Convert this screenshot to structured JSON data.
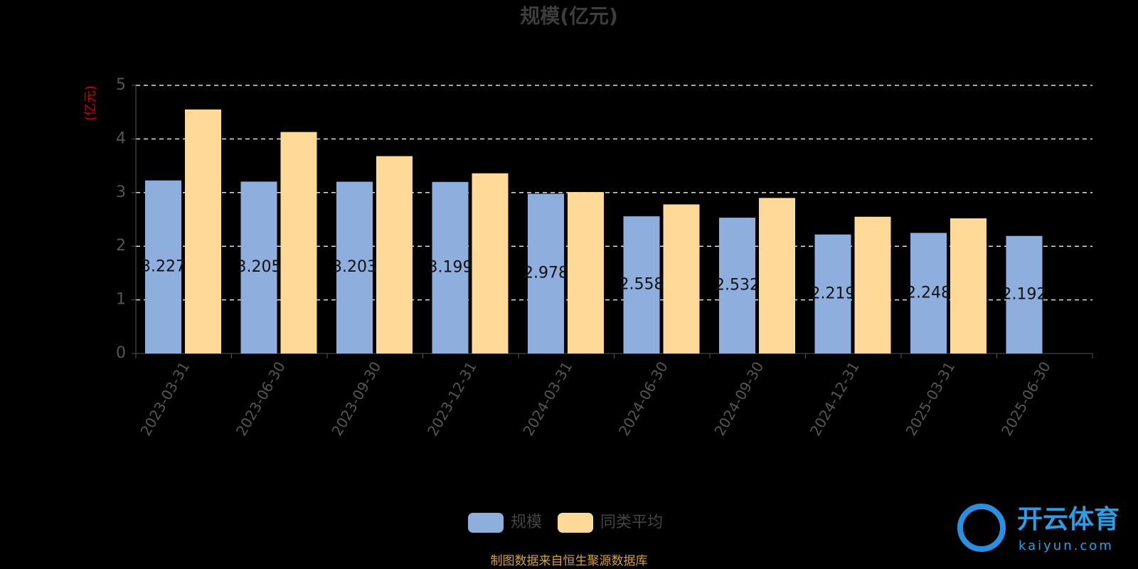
{
  "chart_data": {
    "type": "bar",
    "title": "规模(亿元)",
    "y_label": "(亿元)",
    "categories": [
      "2023-03-31",
      "2023-06-30",
      "2023-09-30",
      "2023-12-31",
      "2024-03-31",
      "2024-06-30",
      "2024-09-30",
      "2024-12-31",
      "2025-03-31",
      "2025-06-30"
    ],
    "series": [
      {
        "name": "规模",
        "color": "#8eaedd",
        "values": [
          3.227,
          3.205,
          3.203,
          3.199,
          2.978,
          2.558,
          2.532,
          2.219,
          2.248,
          2.192
        ],
        "show_labels": true
      },
      {
        "name": "同类平均",
        "color": "#ffd998",
        "values": [
          4.55,
          4.13,
          3.68,
          3.36,
          3.01,
          2.78,
          2.9,
          2.55,
          2.52,
          null
        ],
        "show_labels": false
      }
    ],
    "ylim": [
      0,
      5
    ],
    "yticks": [
      0,
      1,
      2,
      3,
      4,
      5
    ],
    "grid": true,
    "source": "制图数据来自恒生聚源数据库",
    "watermark": {
      "name": "开云体育",
      "url": "kaiyun.com"
    }
  }
}
